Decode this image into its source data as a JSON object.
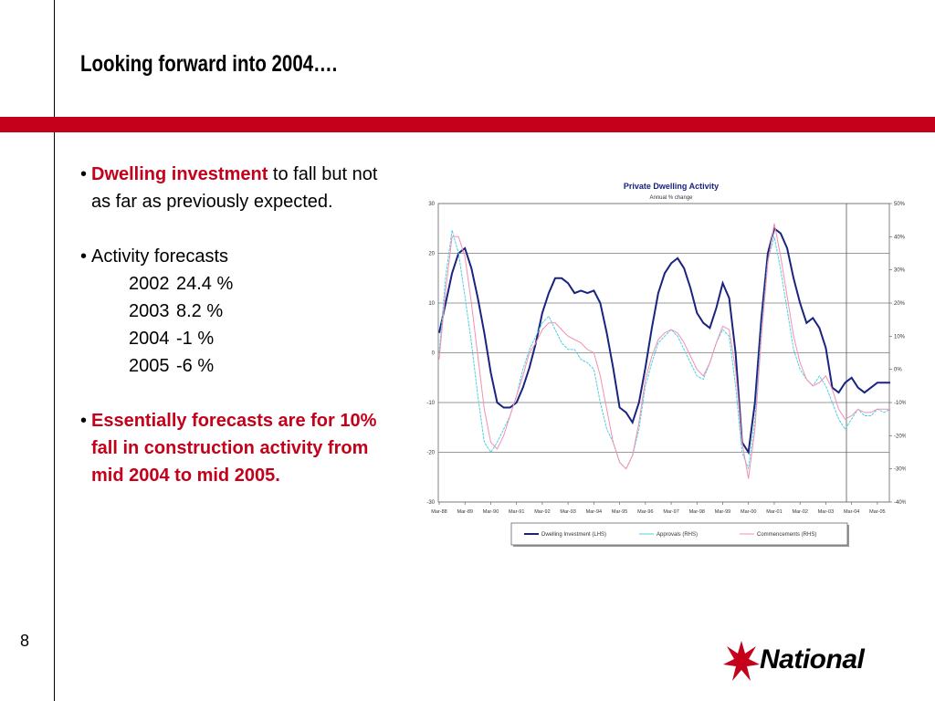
{
  "slide": {
    "title": "Looking forward into 2004….",
    "page_number": "8",
    "brand_color": "#c4001a"
  },
  "bullets": {
    "b1_bold": "Dwelling investment",
    "b1_rest": " to fall but not as far as previously expected.",
    "b2_label": "Activity forecasts",
    "forecasts": [
      {
        "year": "2002",
        "value": "24.4 %"
      },
      {
        "year": "2003",
        "value": "8.2 %"
      },
      {
        "year": "2004",
        "value": "-1 %"
      },
      {
        "year": "2005",
        "value": "-6 %"
      }
    ],
    "b3": "Essentially forecasts are for 10% fall in construction activity from mid 2004 to mid 2005.",
    "marker": "•"
  },
  "logo": {
    "text": "National",
    "icon": "star-burst-icon"
  },
  "chart_data": {
    "type": "line",
    "title": "Private Dwelling Activity",
    "subtitle": "Annual % change",
    "x_tick_labels": [
      "Mar-88",
      "Mar-89",
      "Mar-90",
      "Mar-91",
      "Mar-92",
      "Mar-93",
      "Mar-94",
      "Mar-95",
      "Mar-96",
      "Mar-97",
      "Mar-98",
      "Mar-99",
      "Mar-00",
      "Mar-01",
      "Mar-02",
      "Mar-03",
      "Mar-04",
      "Mar-05"
    ],
    "y_left_ticks": [
      "30",
      "20",
      "10",
      "0",
      "-10",
      "-20",
      "-30"
    ],
    "y_left_range": [
      -30,
      30
    ],
    "y_right_ticks": [
      "50%",
      "40%",
      "30%",
      "20%",
      "10%",
      "0%",
      "-10%",
      "-20%",
      "-30%",
      "-40%"
    ],
    "y_right_range": [
      -40,
      50
    ],
    "forecast_marker_x": 16,
    "grid": true,
    "legend_position": "bottom",
    "series": [
      {
        "name": "Dwelling Investment (LHS)",
        "axis": "left",
        "color": "#1a237e",
        "x": [
          0,
          0.25,
          0.5,
          0.75,
          1,
          1.25,
          1.5,
          1.75,
          2,
          2.25,
          2.5,
          2.75,
          3,
          3.25,
          3.5,
          3.75,
          4,
          4.25,
          4.5,
          4.75,
          5,
          5.25,
          5.5,
          5.75,
          6,
          6.25,
          6.5,
          6.75,
          7,
          7.25,
          7.5,
          7.75,
          8,
          8.25,
          8.5,
          8.75,
          9,
          9.25,
          9.5,
          9.75,
          10,
          10.25,
          10.5,
          10.75,
          11,
          11.25,
          11.5,
          11.75,
          12,
          12.25,
          12.5,
          12.75,
          13,
          13.25,
          13.5,
          13.75,
          14,
          14.25,
          14.5,
          14.75,
          15,
          15.25,
          15.5,
          15.75,
          16,
          16.25,
          16.5,
          16.75,
          17,
          17.25,
          17.5
        ],
        "values": [
          4,
          10,
          16,
          20,
          21,
          17,
          11,
          4,
          -4,
          -10,
          -11,
          -11,
          -10,
          -7,
          -3,
          2,
          8,
          12,
          15,
          15,
          14,
          12,
          12.5,
          12,
          12.5,
          10,
          4,
          -3,
          -11,
          -12,
          -14,
          -10,
          -3,
          5,
          12,
          16,
          18,
          19,
          17,
          13,
          8,
          6,
          5,
          9,
          14,
          11,
          0,
          -18,
          -20,
          -10,
          7,
          20,
          25,
          24,
          21,
          15,
          10,
          6,
          7,
          5,
          1,
          -7,
          -8,
          -6,
          -5,
          -7,
          -8,
          -7,
          -6,
          -6,
          -6
        ]
      },
      {
        "name": "Approvals (RHS)",
        "axis": "right",
        "color": "#4dd0e1",
        "x": [
          0,
          0.25,
          0.5,
          0.75,
          1,
          1.25,
          1.5,
          1.75,
          2,
          2.25,
          2.5,
          2.75,
          3,
          3.25,
          3.5,
          3.75,
          4,
          4.25,
          4.5,
          4.75,
          5,
          5.25,
          5.5,
          5.75,
          6,
          6.25,
          6.5,
          6.75,
          7,
          7.25,
          7.5,
          7.75,
          8,
          8.25,
          8.5,
          8.75,
          9,
          9.25,
          9.5,
          9.75,
          10,
          10.25,
          10.5,
          10.75,
          11,
          11.25,
          11.5,
          11.75,
          12,
          12.25,
          12.5,
          12.75,
          13,
          13.25,
          13.5,
          13.75,
          14,
          14.25,
          14.5,
          14.75,
          15,
          15.25,
          15.5,
          15.75,
          16,
          16.25,
          16.5,
          16.75,
          17,
          17.25,
          17.5
        ],
        "values": [
          5,
          28,
          42,
          35,
          22,
          8,
          -8,
          -22,
          -25,
          -22,
          -18,
          -14,
          -8,
          0,
          6,
          10,
          14,
          16,
          12,
          8,
          6,
          6,
          3,
          2,
          0,
          -10,
          -18,
          -22,
          -28,
          -30,
          -26,
          -18,
          -5,
          2,
          8,
          10,
          12,
          10,
          6,
          2,
          -2,
          -3,
          2,
          8,
          12,
          10,
          -5,
          -25,
          -30,
          -15,
          12,
          33,
          40,
          30,
          18,
          6,
          0,
          -3,
          -5,
          -2,
          -5,
          -10,
          -15,
          -18,
          -15,
          -12,
          -14,
          -14,
          -12,
          -13,
          -12
        ]
      },
      {
        "name": "Commencements (RHS)",
        "axis": "right",
        "color": "#f48fb1",
        "x": [
          0,
          0.25,
          0.5,
          0.75,
          1,
          1.25,
          1.5,
          1.75,
          2,
          2.25,
          2.5,
          2.75,
          3,
          3.25,
          3.5,
          3.75,
          4,
          4.25,
          4.5,
          4.75,
          5,
          5.25,
          5.5,
          5.75,
          6,
          6.25,
          6.5,
          6.75,
          7,
          7.25,
          7.5,
          7.75,
          8,
          8.25,
          8.5,
          8.75,
          9,
          9.25,
          9.5,
          9.75,
          10,
          10.25,
          10.5,
          10.75,
          11,
          11.25,
          11.5,
          11.75,
          12,
          12.25,
          12.5,
          12.75,
          13,
          13.25,
          13.5,
          13.75,
          14,
          14.25,
          14.5,
          14.75,
          15,
          15.25,
          15.5,
          15.75,
          16,
          16.25,
          16.5,
          16.75,
          17,
          17.25,
          17.5
        ],
        "values": [
          3,
          24,
          40,
          40,
          34,
          20,
          4,
          -12,
          -22,
          -24,
          -20,
          -14,
          -8,
          -2,
          5,
          8,
          12,
          14,
          14,
          12,
          10,
          9,
          8,
          6,
          5,
          -2,
          -12,
          -22,
          -28,
          -30,
          -26,
          -16,
          -3,
          4,
          9,
          11,
          12,
          11,
          8,
          4,
          0,
          -2,
          2,
          8,
          13,
          12,
          0,
          -22,
          -33,
          -18,
          10,
          32,
          44,
          34,
          22,
          10,
          2,
          -3,
          -5,
          -4,
          -2,
          -6,
          -12,
          -15,
          -14,
          -12,
          -13,
          -13,
          -12,
          -12,
          -12
        ]
      }
    ]
  }
}
